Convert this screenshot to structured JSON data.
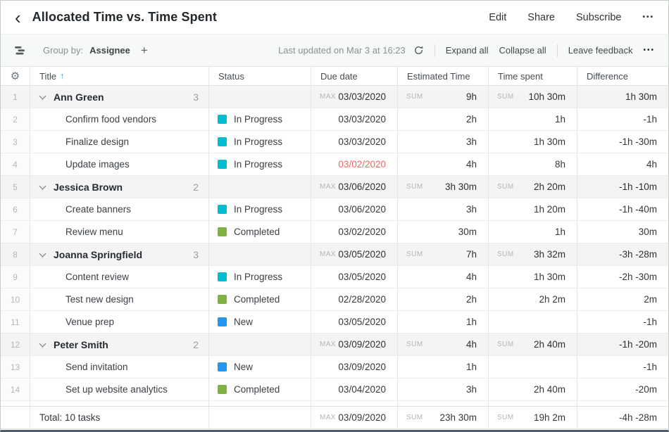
{
  "header": {
    "title": "Allocated Time vs. Time Spent",
    "actions": [
      "Edit",
      "Share",
      "Subscribe"
    ]
  },
  "icons": {
    "back": "‹",
    "more": "•••",
    "plus": "+",
    "sort_asc": "↑",
    "gear": "⚙"
  },
  "toolbar": {
    "group_by_label": "Group by:",
    "group_by_value": "Assignee",
    "last_updated": "Last updated on Mar 3 at 16:23",
    "expand_all": "Expand all",
    "collapse_all": "Collapse all",
    "leave_feedback": "Leave feedback"
  },
  "table": {
    "columns": [
      "Title",
      "Status",
      "Due date",
      "Estimated Time",
      "Time spent",
      "Difference"
    ],
    "sort": {
      "column": "Title",
      "direction": "ascending"
    },
    "status_colors": {
      "In Progress": "#00bcd4",
      "Completed": "#7cb342",
      "New": "#2196f3"
    },
    "rows": [
      {
        "num": "1",
        "type": "group",
        "title": "Ann Green",
        "count": "3",
        "due_label": "MAX",
        "due": "03/03/2020",
        "est_label": "SUM",
        "est": "9h",
        "spent_label": "SUM",
        "spent": "10h 30m",
        "diff": "1h 30m"
      },
      {
        "num": "2",
        "type": "task",
        "title": "Confirm food vendors",
        "status": "In Progress",
        "due": "03/03/2020",
        "overdue": false,
        "est": "2h",
        "spent": "1h",
        "diff": "-1h"
      },
      {
        "num": "3",
        "type": "task",
        "title": "Finalize design",
        "status": "In Progress",
        "due": "03/03/2020",
        "overdue": false,
        "est": "3h",
        "spent": "1h 30m",
        "diff": "-1h -30m"
      },
      {
        "num": "4",
        "type": "task",
        "title": "Update images",
        "status": "In Progress",
        "due": "03/02/2020",
        "overdue": true,
        "est": "4h",
        "spent": "8h",
        "diff": "4h"
      },
      {
        "num": "5",
        "type": "group",
        "title": "Jessica Brown",
        "count": "2",
        "due_label": "MAX",
        "due": "03/06/2020",
        "est_label": "SUM",
        "est": "3h 30m",
        "spent_label": "SUM",
        "spent": "2h 20m",
        "diff": "-1h -10m"
      },
      {
        "num": "6",
        "type": "task",
        "title": "Create banners",
        "status": "In Progress",
        "due": "03/06/2020",
        "overdue": false,
        "est": "3h",
        "spent": "1h 20m",
        "diff": "-1h -40m"
      },
      {
        "num": "7",
        "type": "task",
        "title": "Review menu",
        "status": "Completed",
        "due": "03/02/2020",
        "overdue": false,
        "est": "30m",
        "spent": "1h",
        "diff": "30m"
      },
      {
        "num": "8",
        "type": "group",
        "title": "Joanna Springfield",
        "count": "3",
        "due_label": "MAX",
        "due": "03/05/2020",
        "est_label": "SUM",
        "est": "7h",
        "spent_label": "SUM",
        "spent": "3h 32m",
        "diff": "-3h -28m"
      },
      {
        "num": "9",
        "type": "task",
        "title": "Content review",
        "status": "In Progress",
        "due": "03/05/2020",
        "overdue": false,
        "est": "4h",
        "spent": "1h 30m",
        "diff": "-2h -30m"
      },
      {
        "num": "10",
        "type": "task",
        "title": "Test new design",
        "status": "Completed",
        "due": "02/28/2020",
        "overdue": false,
        "est": "2h",
        "spent": "2h 2m",
        "diff": "2m"
      },
      {
        "num": "11",
        "type": "task",
        "title": "Venue prep",
        "status": "New",
        "due": "03/05/2020",
        "overdue": false,
        "est": "1h",
        "spent": "",
        "diff": "-1h"
      },
      {
        "num": "12",
        "type": "group",
        "title": "Peter Smith",
        "count": "2",
        "due_label": "MAX",
        "due": "03/09/2020",
        "est_label": "SUM",
        "est": "4h",
        "spent_label": "SUM",
        "spent": "2h 40m",
        "diff": "-1h -20m"
      },
      {
        "num": "13",
        "type": "task",
        "title": "Send invitation",
        "status": "New",
        "due": "03/09/2020",
        "overdue": false,
        "est": "1h",
        "spent": "",
        "diff": "-1h"
      },
      {
        "num": "14",
        "type": "task",
        "title": "Set up website analytics",
        "status": "Completed",
        "due": "03/04/2020",
        "overdue": false,
        "est": "3h",
        "spent": "2h 40m",
        "diff": "-20m"
      }
    ],
    "total": {
      "label": "Total: 10 tasks",
      "due_label": "MAX",
      "due": "03/09/2020",
      "est_label": "SUM",
      "est": "23h 30m",
      "spent_label": "SUM",
      "spent": "19h 2m",
      "diff": "-4h -28m"
    }
  },
  "colors": {
    "accent_blue": "#3b97f4",
    "overdue_red": "#f4645f",
    "group_row_bg": "#f4f4f5"
  }
}
